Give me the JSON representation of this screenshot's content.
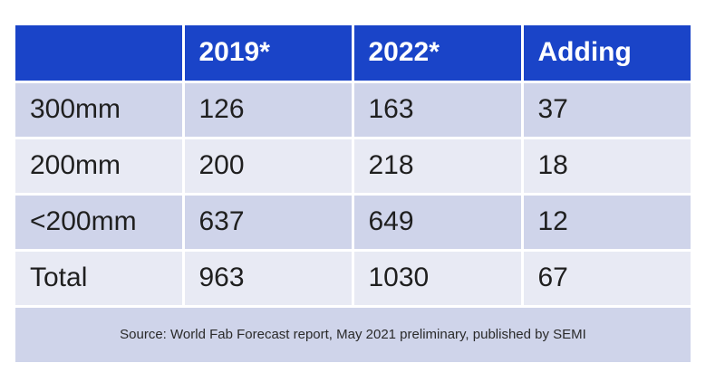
{
  "table": {
    "headers": [
      "",
      "2019*",
      "2022*",
      "Adding"
    ],
    "rows": [
      [
        "300mm",
        "126",
        "163",
        "37"
      ],
      [
        "200mm",
        "200",
        "218",
        "18"
      ],
      [
        "<200mm",
        "637",
        "649",
        "12"
      ],
      [
        "Total",
        "963",
        "1030",
        "67"
      ]
    ]
  },
  "source": "Source: World Fab Forecast report, May 2021 preliminary, published by SEMI",
  "colors": {
    "header_bg": "#1a44c8",
    "header_text": "#ffffff",
    "row_odd": "#cfd4ea",
    "row_even": "#e8eaf4"
  }
}
